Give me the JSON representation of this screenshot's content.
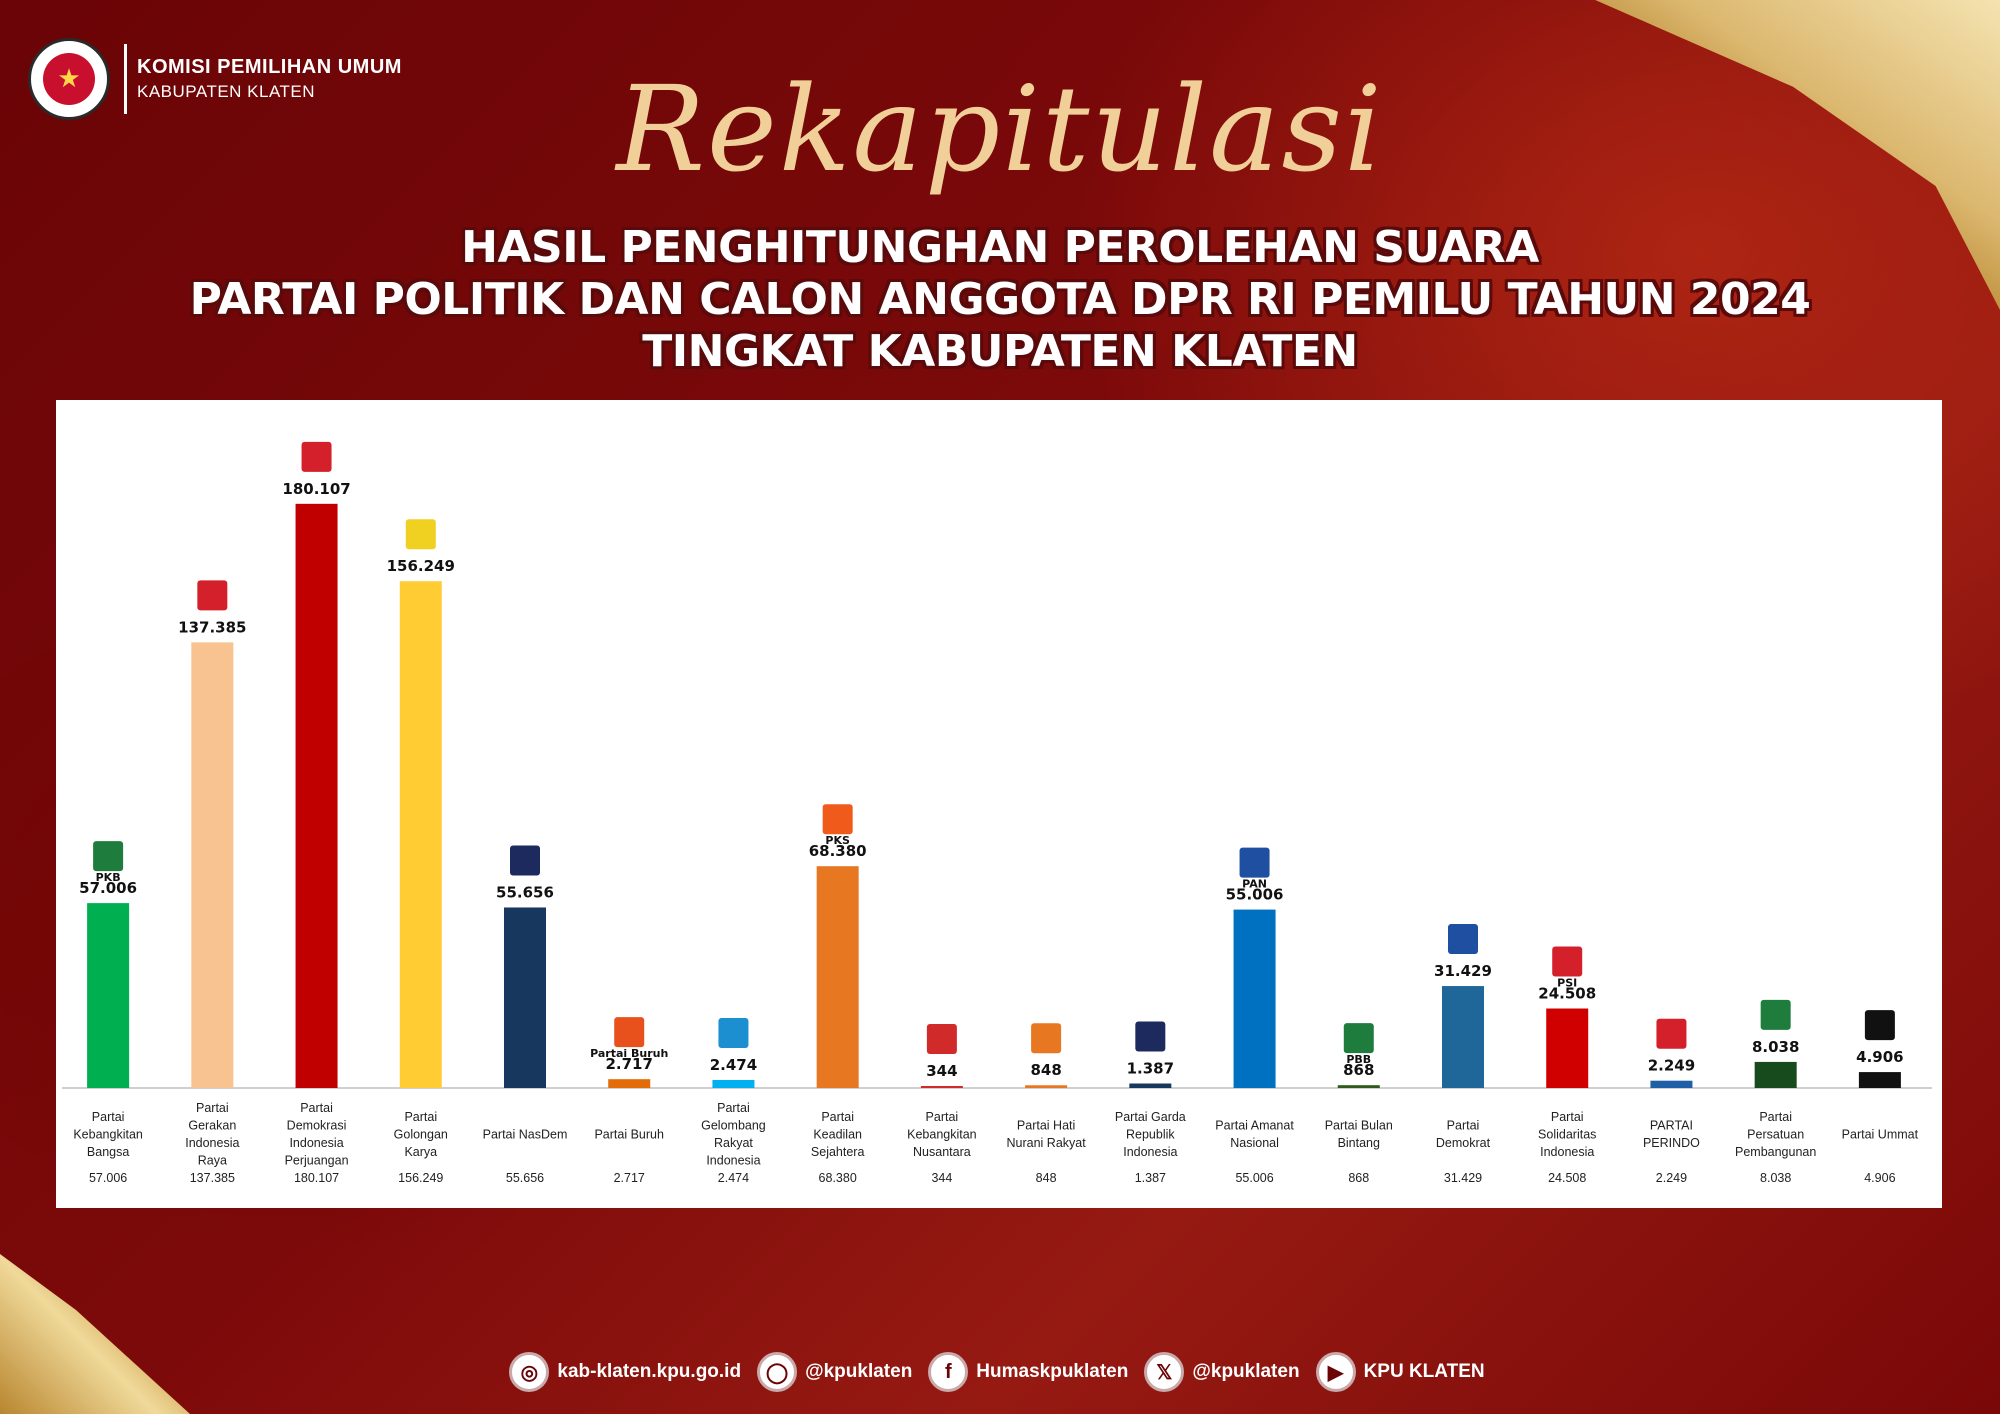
{
  "header": {
    "org_line1": "KOMISI PEMILIHAN UMUM",
    "org_line2": "KABUPATEN KLATEN"
  },
  "title": {
    "script": "Rekapitulasi",
    "line1": "HASIL PENGHITUNGHAN PEROLEHAN SUARA",
    "line2": "PARTAI POLITIK DAN CALON ANGGOTA DPR RI PEMILU TAHUN 2024",
    "line3": "TINGKAT KABUPATEN KLATEN"
  },
  "footer": {
    "website": "kab-klaten.kpu.go.id",
    "instagram": "@kpuklaten",
    "facebook": "Humaskpuklaten",
    "x": "@kpuklaten",
    "youtube": "KPU KLATEN"
  },
  "chart_data": {
    "type": "bar",
    "title": "",
    "xlabel": "",
    "ylabel": "",
    "ylim": [
      0,
      200000
    ],
    "grid": false,
    "categories": [
      "Partai Kebangkitan Bangsa",
      "Partai Gerakan Indonesia Raya",
      "Partai Demokrasi Indonesia Perjuangan",
      "Partai Golongan Karya",
      "Partai NasDem",
      "Partai Buruh",
      "Partai Gelombang Rakyat Indonesia",
      "Partai Keadilan Sejahtera",
      "Partai Kebangkitan Nusantara",
      "Partai Hati Nurani Rakyat",
      "Partai Garda Republik Indonesia",
      "Partai Amanat Nasional",
      "Partai Bulan Bintang",
      "Partai Demokrat",
      "Partai Solidaritas Indonesia",
      "PARTAI PERINDO",
      "Partai Persatuan Pembangunan",
      "Partai Ummat"
    ],
    "values": [
      57006,
      137385,
      180107,
      156249,
      55656,
      2717,
      2474,
      68380,
      344,
      848,
      1387,
      55006,
      868,
      31429,
      24508,
      2249,
      8038,
      4906
    ],
    "value_labels": [
      "57.006",
      "137.385",
      "180.107",
      "156.249",
      "55.656",
      "2.717",
      "2.474",
      "68.380",
      "344",
      "848",
      "1.387",
      "55.006",
      "868",
      "31.429",
      "24.508",
      "2.249",
      "8.038",
      "4.906"
    ],
    "colors": [
      "#00b050",
      "#f8c291",
      "#c00000",
      "#ffcc33",
      "#17375e",
      "#e36c09",
      "#00b0f0",
      "#e87722",
      "#d12a2a",
      "#e87722",
      "#17375e",
      "#0070c0",
      "#2e5a1c",
      "#1f6699",
      "#d00000",
      "#1f5fa8",
      "#174a1c",
      "#111111"
    ],
    "logo_badges": [
      "PKB",
      "",
      "",
      "",
      "",
      "Partai Buruh",
      "",
      "PKS",
      "",
      "",
      "",
      "PAN",
      "PBB",
      "",
      "PSI",
      "",
      "",
      ""
    ],
    "logo_colors": [
      "#1e7d3c",
      "#d4202b",
      "#d4202b",
      "#f0d020",
      "#1c2a5e",
      "#e8501c",
      "#1b8fd0",
      "#f05a1a",
      "#d12a2a",
      "#e87722",
      "#1c2a5e",
      "#1e4fa0",
      "#1e7d3c",
      "#1e4fa0",
      "#d4202b",
      "#d4202b",
      "#1e7d3c",
      "#111111"
    ]
  }
}
